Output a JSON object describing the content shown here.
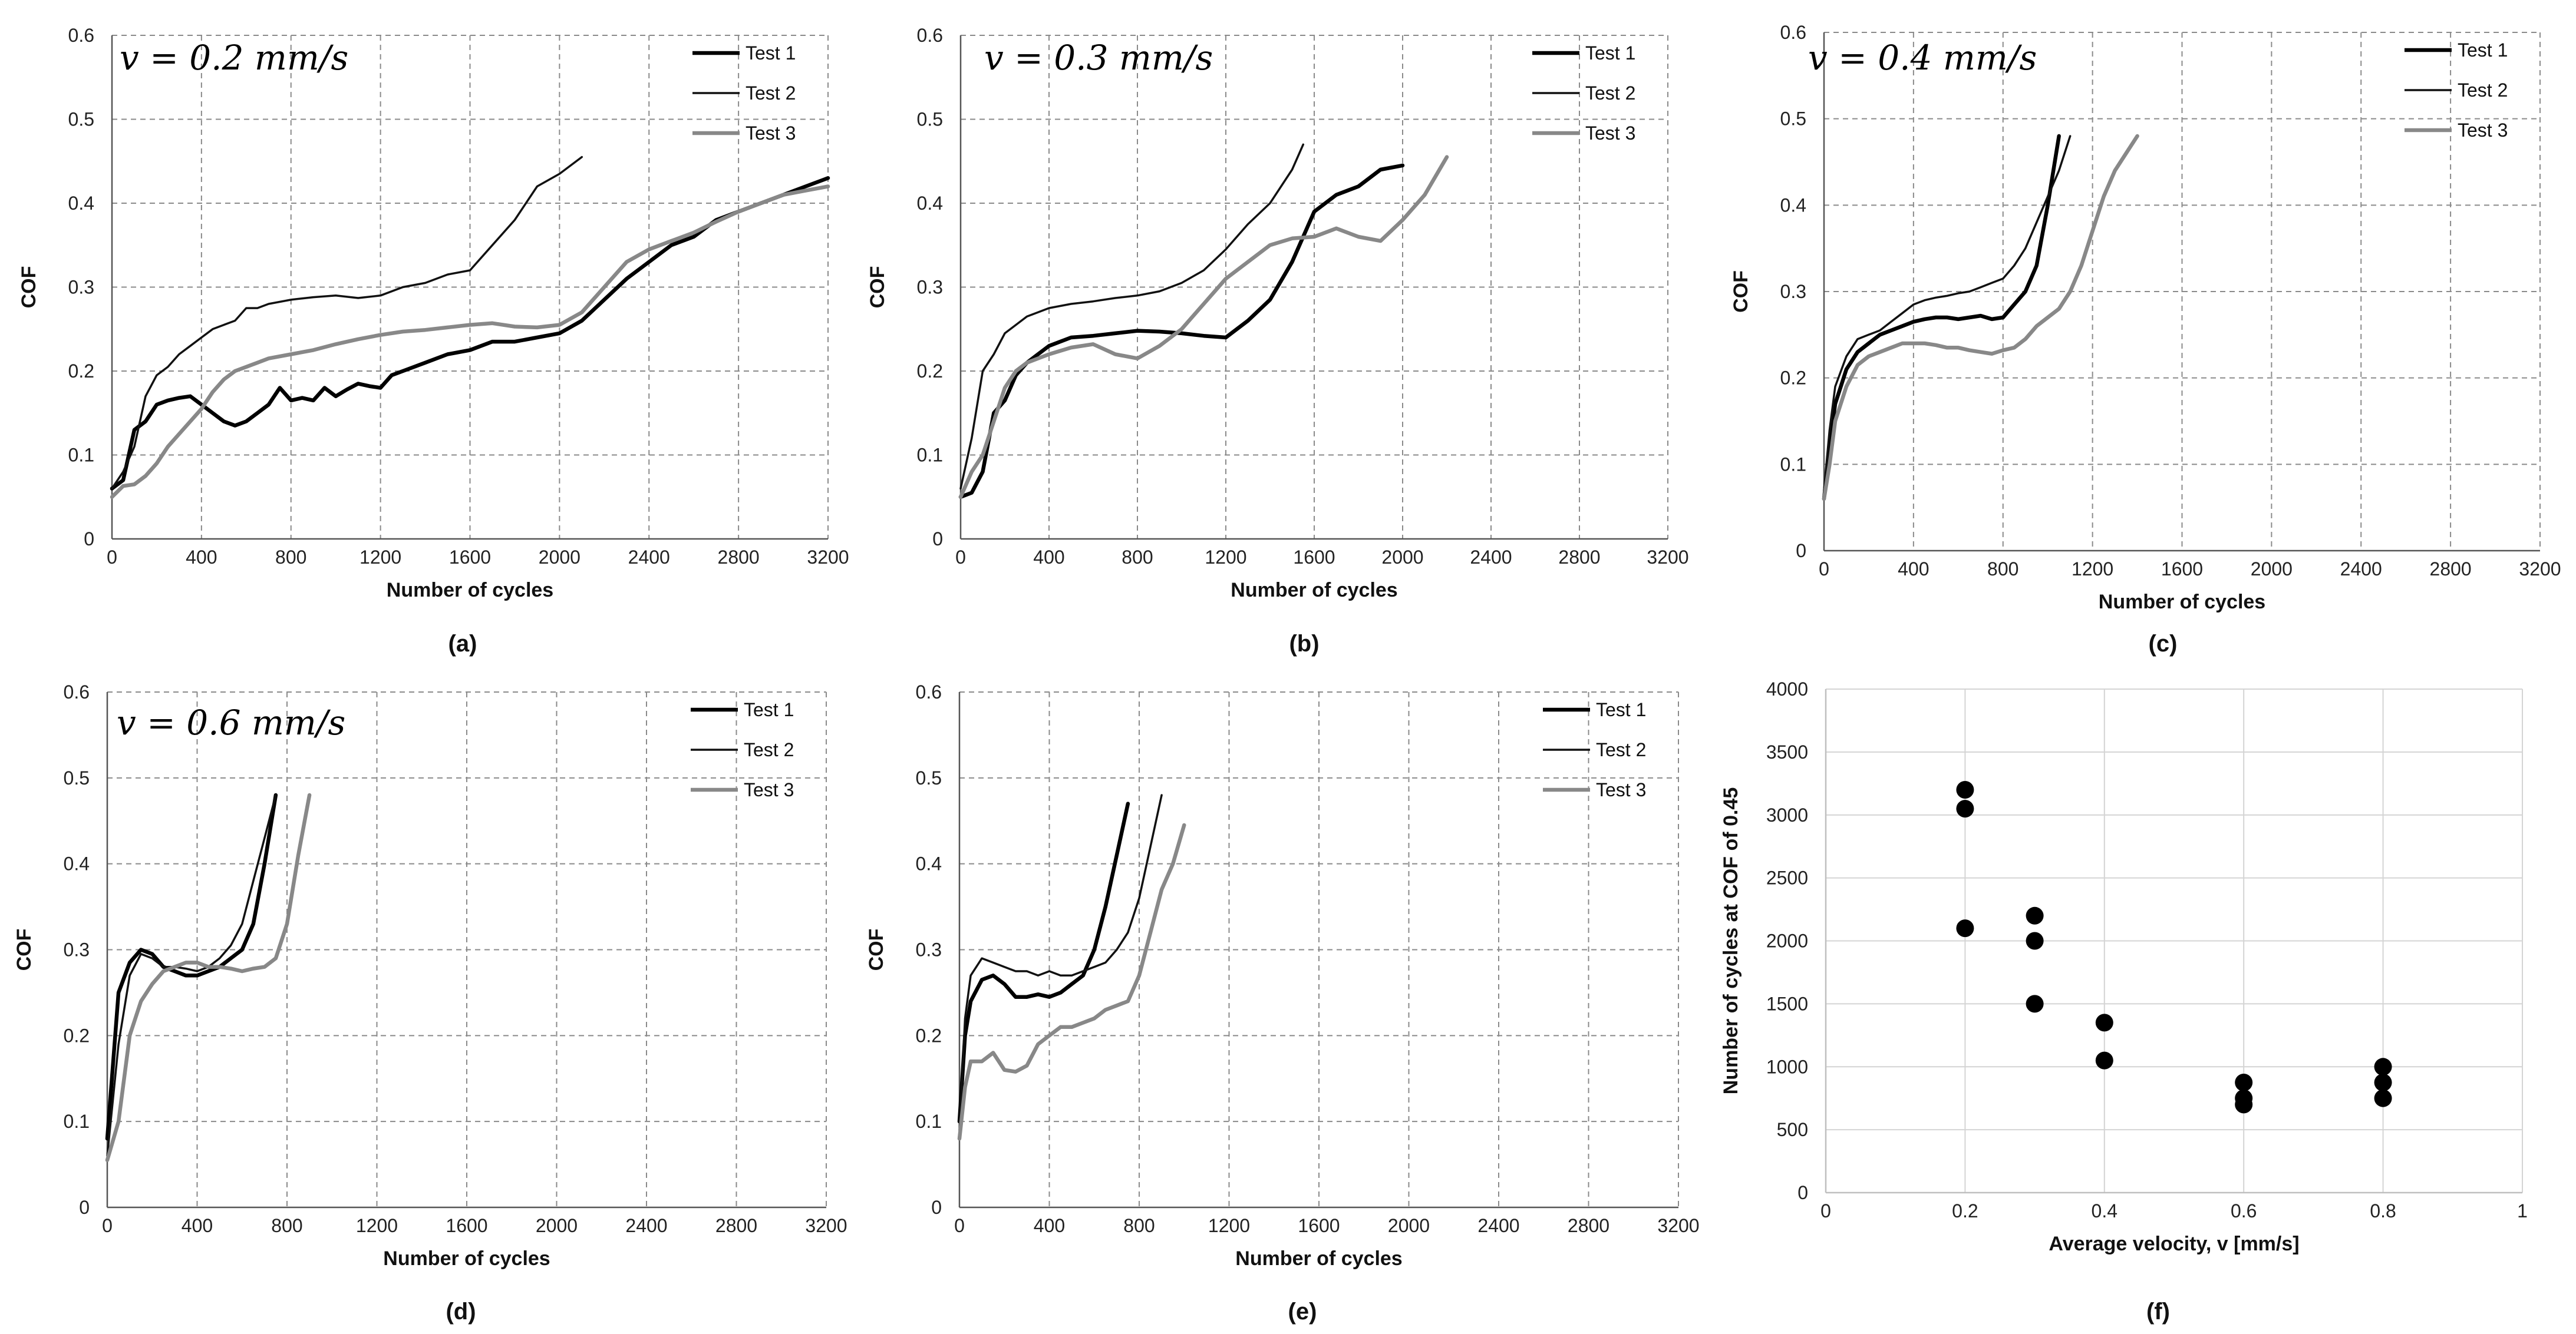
{
  "chart_data": [
    {
      "type": "line",
      "panel_label": "(a)",
      "annotation": "v = 0.2 mm/s",
      "xlabel": "Number of cycles",
      "ylabel": "COF",
      "xlim": [
        0,
        3200
      ],
      "ylim": [
        0,
        0.6
      ],
      "xticks": [
        "0",
        "400",
        "800",
        "1200",
        "1600",
        "2000",
        "2400",
        "2800",
        "3200"
      ],
      "yticks": [
        "0",
        "0.1",
        "0.2",
        "0.3",
        "0.4",
        "0.5",
        "0.6"
      ],
      "series": [
        {
          "name": "Test 1",
          "x": [
            0,
            50,
            100,
            150,
            200,
            250,
            300,
            350,
            400,
            450,
            500,
            550,
            600,
            650,
            700,
            750,
            800,
            850,
            900,
            950,
            1000,
            1050,
            1100,
            1150,
            1200,
            1250,
            1300,
            1400,
            1500,
            1600,
            1700,
            1800,
            1900,
            2000,
            2100,
            2200,
            2300,
            2400,
            2500,
            2600,
            2700,
            2800,
            2900,
            3000,
            3100,
            3200
          ],
          "y": [
            0.06,
            0.07,
            0.13,
            0.14,
            0.16,
            0.165,
            0.168,
            0.17,
            0.16,
            0.15,
            0.14,
            0.135,
            0.14,
            0.15,
            0.16,
            0.18,
            0.165,
            0.168,
            0.165,
            0.18,
            0.17,
            0.178,
            0.185,
            0.182,
            0.18,
            0.195,
            0.2,
            0.21,
            0.22,
            0.225,
            0.235,
            0.235,
            0.24,
            0.245,
            0.26,
            0.285,
            0.31,
            0.33,
            0.35,
            0.36,
            0.38,
            0.39,
            0.4,
            0.41,
            0.42,
            0.43
          ]
        },
        {
          "name": "Test 2",
          "x": [
            0,
            50,
            100,
            150,
            200,
            250,
            300,
            350,
            400,
            450,
            500,
            550,
            600,
            650,
            700,
            800,
            900,
            1000,
            1100,
            1200,
            1300,
            1400,
            1500,
            1600,
            1700,
            1800,
            1900,
            2000,
            2100
          ],
          "y": [
            0.06,
            0.08,
            0.11,
            0.17,
            0.195,
            0.205,
            0.22,
            0.23,
            0.24,
            0.25,
            0.255,
            0.26,
            0.275,
            0.275,
            0.28,
            0.285,
            0.288,
            0.29,
            0.287,
            0.29,
            0.3,
            0.305,
            0.315,
            0.32,
            0.35,
            0.38,
            0.42,
            0.435,
            0.455
          ]
        },
        {
          "name": "Test 3",
          "x": [
            0,
            50,
            100,
            150,
            200,
            250,
            300,
            350,
            400,
            450,
            500,
            550,
            600,
            650,
            700,
            800,
            900,
            1000,
            1100,
            1200,
            1300,
            1400,
            1500,
            1600,
            1700,
            1800,
            1900,
            2000,
            2100,
            2200,
            2300,
            2400,
            2500,
            2600,
            2700,
            2800,
            2900,
            3000,
            3100,
            3200
          ],
          "y": [
            0.05,
            0.063,
            0.065,
            0.075,
            0.09,
            0.11,
            0.125,
            0.14,
            0.155,
            0.175,
            0.19,
            0.2,
            0.205,
            0.21,
            0.215,
            0.22,
            0.225,
            0.232,
            0.238,
            0.243,
            0.247,
            0.249,
            0.252,
            0.255,
            0.257,
            0.253,
            0.252,
            0.255,
            0.27,
            0.3,
            0.33,
            0.345,
            0.355,
            0.365,
            0.378,
            0.39,
            0.4,
            0.41,
            0.415,
            0.42
          ]
        }
      ]
    },
    {
      "type": "line",
      "panel_label": "(b)",
      "annotation": "v = 0.3 mm/s",
      "xlabel": "Number of cycles",
      "ylabel": "COF",
      "xlim": [
        0,
        3200
      ],
      "ylim": [
        0,
        0.6
      ],
      "xticks": [
        "0",
        "400",
        "800",
        "1200",
        "1600",
        "2000",
        "2400",
        "2800",
        "3200"
      ],
      "yticks": [
        "0",
        "0.1",
        "0.2",
        "0.3",
        "0.4",
        "0.5",
        "0.6"
      ],
      "series": [
        {
          "name": "Test 1",
          "x": [
            0,
            50,
            100,
            150,
            200,
            250,
            300,
            350,
            400,
            500,
            600,
            700,
            800,
            900,
            1000,
            1100,
            1200,
            1300,
            1400,
            1500,
            1600,
            1700,
            1800,
            1900,
            2000
          ],
          "y": [
            0.05,
            0.055,
            0.08,
            0.15,
            0.165,
            0.195,
            0.21,
            0.22,
            0.23,
            0.24,
            0.242,
            0.245,
            0.248,
            0.247,
            0.245,
            0.242,
            0.24,
            0.26,
            0.285,
            0.33,
            0.39,
            0.41,
            0.42,
            0.44,
            0.445
          ]
        },
        {
          "name": "Test 2",
          "x": [
            0,
            50,
            100,
            150,
            200,
            250,
            300,
            350,
            400,
            500,
            600,
            700,
            800,
            900,
            1000,
            1100,
            1200,
            1300,
            1400,
            1500,
            1550
          ],
          "y": [
            0.06,
            0.12,
            0.2,
            0.22,
            0.245,
            0.255,
            0.265,
            0.27,
            0.275,
            0.28,
            0.283,
            0.287,
            0.29,
            0.295,
            0.305,
            0.32,
            0.345,
            0.375,
            0.4,
            0.44,
            0.47
          ]
        },
        {
          "name": "Test 3",
          "x": [
            0,
            50,
            100,
            150,
            200,
            250,
            300,
            350,
            400,
            500,
            600,
            700,
            800,
            900,
            1000,
            1100,
            1200,
            1300,
            1400,
            1500,
            1600,
            1700,
            1800,
            1900,
            2000,
            2100,
            2200
          ],
          "y": [
            0.05,
            0.08,
            0.1,
            0.14,
            0.18,
            0.2,
            0.21,
            0.215,
            0.22,
            0.228,
            0.232,
            0.22,
            0.215,
            0.23,
            0.25,
            0.28,
            0.31,
            0.33,
            0.35,
            0.358,
            0.36,
            0.37,
            0.36,
            0.355,
            0.38,
            0.41,
            0.455
          ]
        }
      ]
    },
    {
      "type": "line",
      "panel_label": "(c)",
      "annotation": "v = 0.4 mm/s",
      "xlabel": "Number of cycles",
      "ylabel": "COF",
      "xlim": [
        0,
        3200
      ],
      "ylim": [
        0,
        0.6
      ],
      "xticks": [
        "0",
        "400",
        "800",
        "1200",
        "1600",
        "2000",
        "2400",
        "2800",
        "3200"
      ],
      "yticks": [
        "0",
        "0.1",
        "0.2",
        "0.3",
        "0.4",
        "0.5",
        "0.6"
      ],
      "series": [
        {
          "name": "Test 1",
          "x": [
            0,
            25,
            50,
            100,
            150,
            200,
            250,
            300,
            350,
            400,
            450,
            500,
            550,
            600,
            650,
            700,
            750,
            800,
            850,
            900,
            950,
            1000,
            1050
          ],
          "y": [
            0.06,
            0.12,
            0.17,
            0.21,
            0.23,
            0.24,
            0.25,
            0.255,
            0.26,
            0.265,
            0.268,
            0.27,
            0.27,
            0.268,
            0.27,
            0.272,
            0.268,
            0.27,
            0.285,
            0.3,
            0.33,
            0.4,
            0.48
          ]
        },
        {
          "name": "Test 2",
          "x": [
            0,
            25,
            50,
            100,
            150,
            200,
            250,
            300,
            350,
            400,
            450,
            500,
            550,
            600,
            650,
            700,
            750,
            800,
            850,
            900,
            950,
            1000,
            1050,
            1100
          ],
          "y": [
            0.07,
            0.14,
            0.19,
            0.225,
            0.245,
            0.25,
            0.255,
            0.265,
            0.275,
            0.285,
            0.29,
            0.293,
            0.295,
            0.298,
            0.3,
            0.305,
            0.31,
            0.315,
            0.33,
            0.35,
            0.38,
            0.41,
            0.44,
            0.48
          ]
        },
        {
          "name": "Test 3",
          "x": [
            0,
            25,
            50,
            100,
            150,
            200,
            250,
            300,
            350,
            400,
            450,
            500,
            550,
            600,
            650,
            700,
            750,
            800,
            850,
            900,
            950,
            1000,
            1050,
            1100,
            1150,
            1200,
            1250,
            1300,
            1350,
            1400
          ],
          "y": [
            0.06,
            0.1,
            0.15,
            0.19,
            0.215,
            0.225,
            0.23,
            0.235,
            0.24,
            0.24,
            0.24,
            0.238,
            0.235,
            0.235,
            0.232,
            0.23,
            0.228,
            0.232,
            0.235,
            0.245,
            0.26,
            0.27,
            0.28,
            0.3,
            0.33,
            0.37,
            0.41,
            0.44,
            0.46,
            0.48
          ]
        }
      ]
    },
    {
      "type": "line",
      "panel_label": "(d)",
      "annotation": "v = 0.6 mm/s",
      "xlabel": "Number of cycles",
      "ylabel": "COF",
      "xlim": [
        0,
        3200
      ],
      "ylim": [
        0,
        0.6
      ],
      "xticks": [
        "0",
        "400",
        "800",
        "1200",
        "1600",
        "2000",
        "2400",
        "2800",
        "3200"
      ],
      "yticks": [
        "0",
        "0.1",
        "0.2",
        "0.3",
        "0.4",
        "0.5",
        "0.6"
      ],
      "series": [
        {
          "name": "Test 1",
          "x": [
            0,
            50,
            100,
            150,
            200,
            250,
            300,
            350,
            400,
            450,
            500,
            550,
            600,
            650,
            700,
            750
          ],
          "y": [
            0.08,
            0.25,
            0.285,
            0.3,
            0.295,
            0.28,
            0.275,
            0.27,
            0.27,
            0.275,
            0.28,
            0.29,
            0.3,
            0.33,
            0.4,
            0.48
          ]
        },
        {
          "name": "Test 2",
          "x": [
            0,
            50,
            100,
            150,
            200,
            250,
            300,
            350,
            400,
            450,
            500,
            550,
            600,
            650,
            700,
            750
          ],
          "y": [
            0.06,
            0.19,
            0.27,
            0.295,
            0.29,
            0.28,
            0.28,
            0.278,
            0.275,
            0.28,
            0.29,
            0.305,
            0.33,
            0.38,
            0.43,
            0.48
          ]
        },
        {
          "name": "Test 3",
          "x": [
            0,
            50,
            100,
            150,
            200,
            250,
            300,
            350,
            400,
            450,
            500,
            550,
            600,
            650,
            700,
            750,
            800,
            850,
            900
          ],
          "y": [
            0.055,
            0.1,
            0.2,
            0.24,
            0.26,
            0.275,
            0.28,
            0.285,
            0.285,
            0.28,
            0.28,
            0.278,
            0.275,
            0.278,
            0.28,
            0.29,
            0.33,
            0.41,
            0.48
          ]
        }
      ]
    },
    {
      "type": "line",
      "panel_label": "(e)",
      "annotation": "",
      "xlabel": "Number of cycles",
      "ylabel": "COF",
      "xlim": [
        0,
        3200
      ],
      "ylim": [
        0,
        0.6
      ],
      "xticks": [
        "0",
        "400",
        "800",
        "1200",
        "1600",
        "2000",
        "2400",
        "2800",
        "3200"
      ],
      "yticks": [
        "0",
        "0.1",
        "0.2",
        "0.3",
        "0.4",
        "0.5",
        "0.6"
      ],
      "series": [
        {
          "name": "Test 1",
          "x": [
            0,
            25,
            50,
            100,
            150,
            200,
            250,
            300,
            350,
            400,
            450,
            500,
            550,
            600,
            650,
            700,
            750
          ],
          "y": [
            0.1,
            0.2,
            0.24,
            0.265,
            0.27,
            0.26,
            0.245,
            0.245,
            0.248,
            0.245,
            0.25,
            0.26,
            0.27,
            0.3,
            0.35,
            0.41,
            0.47
          ]
        },
        {
          "name": "Test 2",
          "x": [
            0,
            25,
            50,
            100,
            150,
            200,
            250,
            300,
            350,
            400,
            450,
            500,
            550,
            600,
            650,
            700,
            750,
            800,
            850,
            900
          ],
          "y": [
            0.09,
            0.22,
            0.27,
            0.29,
            0.285,
            0.28,
            0.275,
            0.275,
            0.27,
            0.275,
            0.27,
            0.27,
            0.275,
            0.28,
            0.285,
            0.3,
            0.32,
            0.36,
            0.42,
            0.48
          ]
        },
        {
          "name": "Test 3",
          "x": [
            0,
            25,
            50,
            100,
            150,
            200,
            250,
            300,
            350,
            400,
            450,
            500,
            550,
            600,
            650,
            700,
            750,
            800,
            850,
            900,
            950,
            1000
          ],
          "y": [
            0.08,
            0.14,
            0.17,
            0.17,
            0.18,
            0.16,
            0.158,
            0.165,
            0.19,
            0.2,
            0.21,
            0.21,
            0.215,
            0.22,
            0.23,
            0.235,
            0.24,
            0.27,
            0.32,
            0.37,
            0.4,
            0.445
          ]
        }
      ]
    },
    {
      "type": "scatter",
      "panel_label": "(f)",
      "xlabel": "Average velocity, v [mm/s]",
      "ylabel": "Number of cycles at COF of 0.45",
      "xlim": [
        0,
        1
      ],
      "ylim": [
        0,
        4000
      ],
      "xticks": [
        "0",
        "0.2",
        "0.4",
        "0.6",
        "0.8",
        "1"
      ],
      "yticks": [
        "0",
        "500",
        "1000",
        "1500",
        "2000",
        "2500",
        "3000",
        "3500",
        "4000"
      ],
      "series": [
        {
          "name": "",
          "x": [
            0.2,
            0.2,
            0.2,
            0.3,
            0.3,
            0.3,
            0.4,
            0.4,
            0.6,
            0.6,
            0.6,
            0.8,
            0.8,
            0.8
          ],
          "y": [
            3200,
            3050,
            2100,
            2200,
            2000,
            1500,
            1350,
            1050,
            875,
            750,
            700,
            1000,
            875,
            750
          ]
        }
      ]
    }
  ],
  "legend_colors": {
    "Test 1": "#000000",
    "Test 2": "#111111",
    "Test 3": "#888888"
  }
}
